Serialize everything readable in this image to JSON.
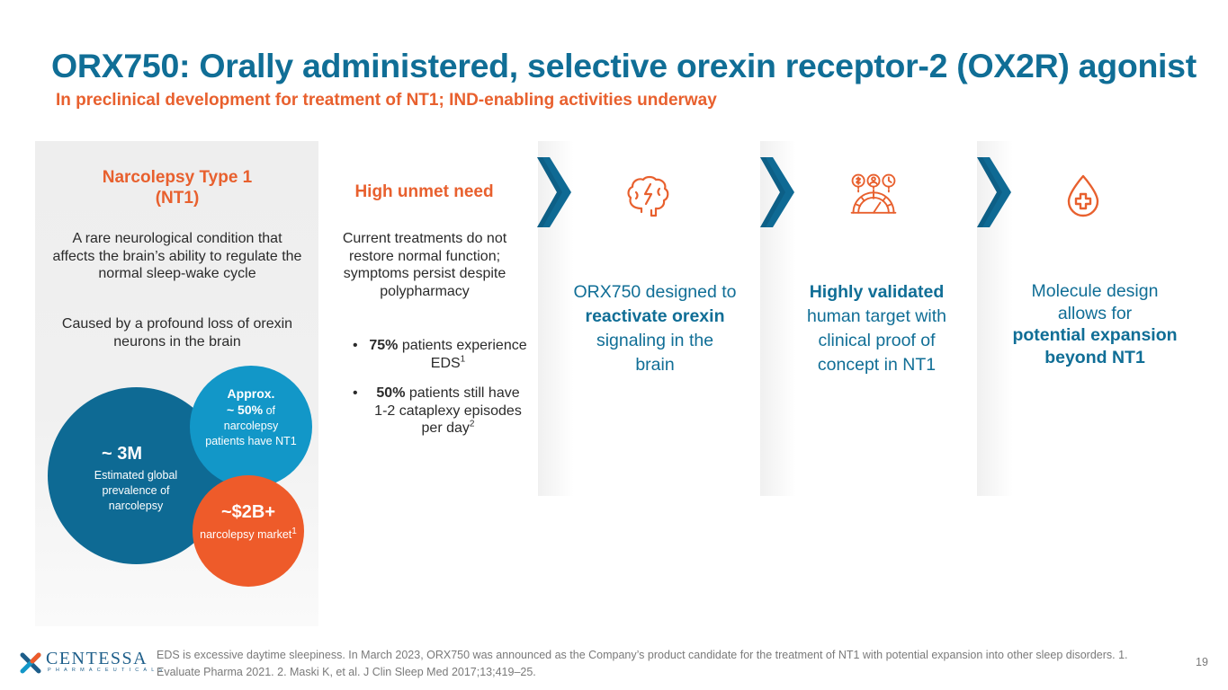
{
  "header": {
    "title": "ORX750: Orally administered, selective orexin receptor-2 (OX2R) agonist",
    "subtitle": "In preclinical development for treatment of NT1; IND-enabling activities underway"
  },
  "nt1_panel": {
    "title_line1": "Narcolepsy Type 1",
    "title_line2": "(NT1)",
    "description": "A rare neurological condition that affects the brain’s ability to regulate the normal sleep-wake cycle",
    "cause": "Caused by a profound loss of orexin neurons in the brain"
  },
  "stats": {
    "prevalence_value": "~ 3M",
    "prevalence_label": "Estimated global prevalence of narcolepsy",
    "nt1_share_prefix": "Approx.",
    "nt1_share_value": "~ 50%",
    "nt1_share_of": "of",
    "nt1_share_label": "narcolepsy patients have NT1",
    "market_value": "~$2B+",
    "market_label": "narcolepsy market",
    "market_sup": "1"
  },
  "unmet_need": {
    "title": "High unmet need",
    "body": "Current treatments do not restore normal function; symptoms persist despite polypharmacy",
    "bullet_symbol": "•",
    "bullet1_bold": "75%",
    "bullet1_rest": "patients experience EDS",
    "bullet1_sup": "1",
    "bullet2_bold": "50%",
    "bullet2_rest": "patients still have 1-2 cataplexy episodes per day",
    "bullet2_sup": "2"
  },
  "features": {
    "f1_pre": "ORX750 designed to",
    "f1_bold": "reactivate orexin",
    "f1_post": "signaling in the brain",
    "f2_bold": "Highly validated",
    "f2_post": "human target with clinical proof of concept in NT1",
    "f3_pre": "Molecule design allows for",
    "f3_bold": "potential expansion beyond NT1"
  },
  "colors": {
    "brand_blue": "#106e96",
    "accent_orange": "#e8602e",
    "circle_dark_blue": "#0e6a94",
    "circle_light_blue": "#1297c8",
    "circle_orange": "#ee5b2a"
  },
  "icons": {
    "feature1": "brain-icon",
    "feature2": "gauge-metrics-icon",
    "feature3": "blood-drop-plus-icon"
  },
  "footer": {
    "logo_name": "CENTESSA",
    "logo_sub": "PHARMACEUTICALS",
    "footnote": "EDS is excessive daytime sleepiness. In March 2023, ORX750 was announced as the Company’s product candidate for the treatment of NT1 with potential expansion into other sleep disorders.  1. Evaluate Pharma 2021. 2. Maski K, et al. J Clin Sleep Med 2017;13;419–25.",
    "page_number": "19"
  }
}
